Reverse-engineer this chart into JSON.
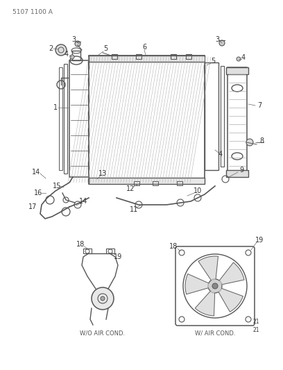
{
  "bg_color": "#ffffff",
  "part_number": "5107 1100 A",
  "line_color": "#555555",
  "label_color": "#333333",
  "fig_width": 4.08,
  "fig_height": 5.33,
  "dpi": 100
}
